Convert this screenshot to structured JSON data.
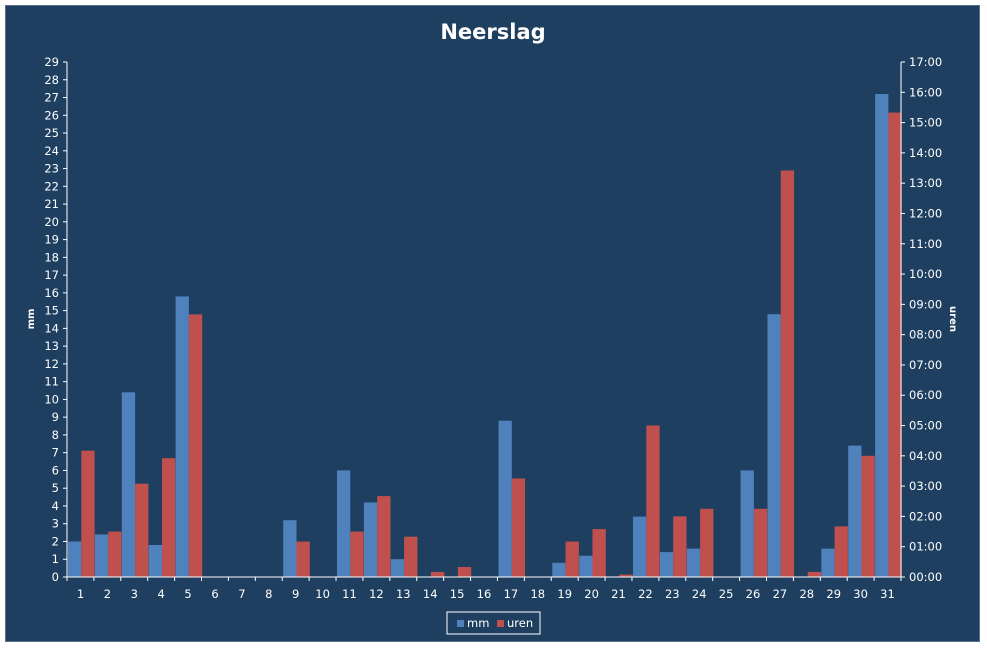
{
  "chart_data": {
    "type": "bar",
    "title": "Neerslag",
    "xlabel": "",
    "ylabel": "mm",
    "y2label": "uren",
    "categories": [
      "1",
      "2",
      "3",
      "4",
      "5",
      "6",
      "7",
      "8",
      "9",
      "10",
      "11",
      "12",
      "13",
      "14",
      "15",
      "16",
      "17",
      "18",
      "19",
      "20",
      "21",
      "22",
      "23",
      "24",
      "25",
      "26",
      "27",
      "28",
      "29",
      "30",
      "31"
    ],
    "ylim": [
      0,
      29
    ],
    "y2lim_hours": [
      0,
      17
    ],
    "y_ticks": [
      "0",
      "1",
      "2",
      "3",
      "4",
      "5",
      "6",
      "7",
      "8",
      "9",
      "10",
      "11",
      "12",
      "13",
      "14",
      "15",
      "16",
      "17",
      "18",
      "19",
      "20",
      "21",
      "22",
      "23",
      "24",
      "25",
      "26",
      "27",
      "28",
      "29"
    ],
    "y2_ticks": [
      "00:00",
      "01:00",
      "02:00",
      "03:00",
      "04:00",
      "05:00",
      "06:00",
      "07:00",
      "08:00",
      "09:00",
      "10:00",
      "11:00",
      "12:00",
      "13:00",
      "14:00",
      "15:00",
      "16:00",
      "17:00"
    ],
    "grid": false,
    "legend_position": "bottom",
    "series": [
      {
        "name": "mm",
        "axis": "left",
        "color": "#4f81bd",
        "values": [
          2.0,
          2.4,
          10.4,
          1.8,
          15.8,
          0,
          0,
          0,
          3.2,
          0,
          6.0,
          4.2,
          1.0,
          0,
          0,
          0,
          8.8,
          0,
          0.8,
          1.2,
          0,
          3.4,
          1.4,
          1.6,
          0,
          6.0,
          14.8,
          0,
          1.6,
          7.4,
          27.2
        ]
      },
      {
        "name": "uren",
        "axis": "right",
        "color": "#c0504d",
        "values": [
          4.17,
          1.5,
          3.08,
          3.92,
          8.67,
          0,
          0,
          0,
          1.17,
          0,
          1.5,
          2.67,
          1.33,
          0.17,
          0.33,
          0,
          3.25,
          0,
          1.17,
          1.58,
          0.08,
          5.0,
          2.0,
          2.25,
          0,
          2.25,
          13.42,
          0.17,
          1.67,
          4.0,
          15.33
        ]
      }
    ]
  }
}
